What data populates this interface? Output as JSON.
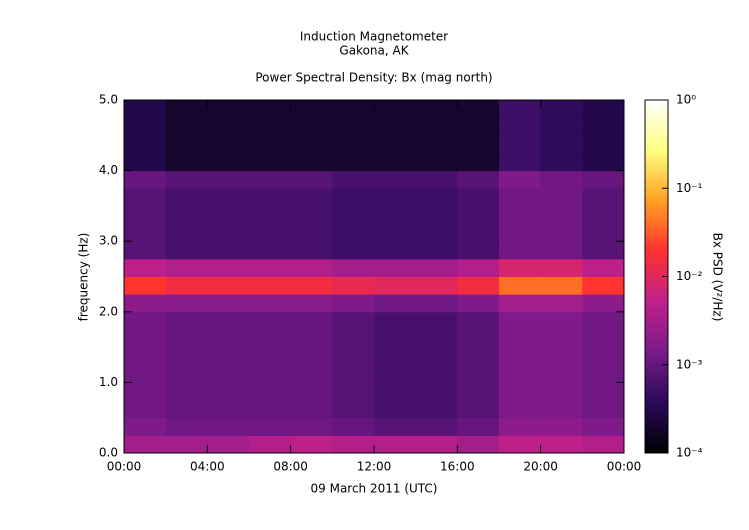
{
  "chart_data": {
    "type": "heatmap",
    "title": "Induction Magnetometer",
    "subtitle": "Gakona, AK",
    "plot_title": "Power Spectral Density: Bx (mag north)",
    "x_label": "09 March 2011 (UTC)",
    "y_label": "frequency (Hz)",
    "colorbar_label": "Bx PSD (V²/Hz)",
    "xlim": [
      0,
      24
    ],
    "xticks": [
      {
        "value": 0,
        "label": "00:00"
      },
      {
        "value": 4,
        "label": "04:00"
      },
      {
        "value": 8,
        "label": "08:00"
      },
      {
        "value": 12,
        "label": "12:00"
      },
      {
        "value": 16,
        "label": "16:00"
      },
      {
        "value": 20,
        "label": "20:00"
      },
      {
        "value": 24,
        "label": "00:00"
      }
    ],
    "ylim": [
      0,
      5
    ],
    "yticks": [
      {
        "value": 0,
        "label": "0.0"
      },
      {
        "value": 1,
        "label": "1.0"
      },
      {
        "value": 2,
        "label": "2.0"
      },
      {
        "value": 3,
        "label": "3.0"
      },
      {
        "value": 4,
        "label": "4.0"
      },
      {
        "value": 5,
        "label": "5.0"
      }
    ],
    "clim": [
      0.0001,
      1
    ],
    "clog": true,
    "cticks": [
      {
        "value": 0.0001,
        "label": "10⁻⁴"
      },
      {
        "value": 0.001,
        "label": "10⁻³"
      },
      {
        "value": 0.01,
        "label": "10⁻²"
      },
      {
        "value": 0.1,
        "label": "10⁻¹"
      },
      {
        "value": 1,
        "label": "10⁰"
      }
    ],
    "colormap": [
      "#000000",
      "#2a0a5a",
      "#7a1a8a",
      "#c0208a",
      "#ff3030",
      "#ffa020",
      "#ffff80",
      "#ffffff"
    ],
    "x_bins": [
      0,
      2,
      4,
      6,
      8,
      10,
      12,
      14,
      16,
      18,
      20,
      22,
      24
    ],
    "y_bins": [
      0,
      0.25,
      0.5,
      0.75,
      1,
      1.25,
      1.5,
      1.75,
      2,
      2.25,
      2.5,
      2.75,
      3,
      3.25,
      3.5,
      3.75,
      4,
      4.25,
      4.5,
      4.75,
      5
    ],
    "values": [
      [
        0.003,
        0.003,
        0.003,
        0.004,
        0.005,
        0.004,
        0.004,
        0.004,
        0.003,
        0.005,
        0.005,
        0.004
      ],
      [
        0.0015,
        0.0012,
        0.0012,
        0.0012,
        0.0012,
        0.001,
        0.0008,
        0.0008,
        0.001,
        0.002,
        0.002,
        0.0015
      ],
      [
        0.0012,
        0.001,
        0.001,
        0.001,
        0.001,
        0.0008,
        0.0006,
        0.0006,
        0.0008,
        0.0015,
        0.0015,
        0.0012
      ],
      [
        0.0012,
        0.001,
        0.001,
        0.001,
        0.001,
        0.0008,
        0.0006,
        0.0006,
        0.0008,
        0.0015,
        0.0015,
        0.0012
      ],
      [
        0.0012,
        0.001,
        0.001,
        0.001,
        0.001,
        0.0008,
        0.0006,
        0.0006,
        0.0008,
        0.0015,
        0.0015,
        0.0012
      ],
      [
        0.0012,
        0.001,
        0.001,
        0.001,
        0.001,
        0.0008,
        0.0006,
        0.0006,
        0.0008,
        0.0015,
        0.0015,
        0.0012
      ],
      [
        0.0012,
        0.001,
        0.001,
        0.001,
        0.001,
        0.0008,
        0.0006,
        0.0006,
        0.0008,
        0.0015,
        0.0015,
        0.0012
      ],
      [
        0.0012,
        0.001,
        0.001,
        0.001,
        0.001,
        0.0008,
        0.0006,
        0.0006,
        0.0008,
        0.0015,
        0.0015,
        0.0012
      ],
      [
        0.002,
        0.0018,
        0.0018,
        0.0018,
        0.0018,
        0.0015,
        0.0012,
        0.0012,
        0.0015,
        0.003,
        0.003,
        0.002
      ],
      [
        0.02,
        0.015,
        0.015,
        0.015,
        0.015,
        0.012,
        0.01,
        0.01,
        0.015,
        0.04,
        0.04,
        0.02
      ],
      [
        0.005,
        0.004,
        0.004,
        0.004,
        0.004,
        0.003,
        0.003,
        0.003,
        0.004,
        0.008,
        0.008,
        0.005
      ],
      [
        0.0008,
        0.0006,
        0.0006,
        0.0006,
        0.0006,
        0.0005,
        0.0005,
        0.0005,
        0.0006,
        0.0012,
        0.0012,
        0.0008
      ],
      [
        0.0008,
        0.0006,
        0.0006,
        0.0006,
        0.0006,
        0.0005,
        0.0005,
        0.0005,
        0.0006,
        0.0012,
        0.0012,
        0.0008
      ],
      [
        0.0008,
        0.0006,
        0.0006,
        0.0006,
        0.0006,
        0.0005,
        0.0005,
        0.0005,
        0.0006,
        0.0012,
        0.0012,
        0.0008
      ],
      [
        0.0008,
        0.0006,
        0.0006,
        0.0006,
        0.0006,
        0.0005,
        0.0005,
        0.0005,
        0.0006,
        0.0012,
        0.0012,
        0.0008
      ],
      [
        0.001,
        0.0008,
        0.0008,
        0.0008,
        0.0008,
        0.0006,
        0.0006,
        0.0006,
        0.0008,
        0.0015,
        0.0012,
        0.001
      ],
      [
        0.0003,
        0.0002,
        0.0002,
        0.0002,
        0.0002,
        0.0002,
        0.0002,
        0.0002,
        0.0002,
        0.0005,
        0.0004,
        0.0003
      ],
      [
        0.0003,
        0.0002,
        0.0002,
        0.0002,
        0.0002,
        0.0002,
        0.0002,
        0.0002,
        0.0002,
        0.0005,
        0.0004,
        0.0003
      ],
      [
        0.0003,
        0.0002,
        0.0002,
        0.0002,
        0.0002,
        0.0002,
        0.0002,
        0.0002,
        0.0002,
        0.0005,
        0.0004,
        0.0003
      ],
      [
        0.0003,
        0.0002,
        0.0002,
        0.0002,
        0.0002,
        0.0002,
        0.0002,
        0.0002,
        0.0002,
        0.0005,
        0.0004,
        0.0003
      ]
    ]
  }
}
